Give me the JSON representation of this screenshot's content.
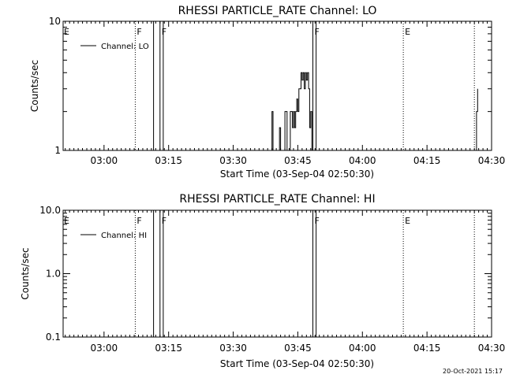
{
  "footer": {
    "timestamp": "20-Oct-2021 15:17"
  },
  "chart_data": [
    {
      "type": "line",
      "title": "RHESSI PARTICLE_RATE Channel: LO",
      "xlabel": "Start Time (03-Sep-04 02:50:30)",
      "ylabel": "Counts/sec",
      "y_scale": "log",
      "xlim": [
        "02:50:30",
        "04:30:00"
      ],
      "ylim": [
        1,
        10
      ],
      "x_ticks": [
        "03:00",
        "03:15",
        "03:30",
        "03:45",
        "04:00",
        "04:15",
        "04:30"
      ],
      "y_ticks": [
        {
          "value": 1,
          "label": "1"
        },
        {
          "value": 10,
          "label": "10"
        }
      ],
      "legend": {
        "position": "top-left",
        "entries": [
          "Channel: LO"
        ]
      },
      "series": [
        {
          "name": "Channel: LO",
          "segments": [
            [
              [
                "03:38:45",
                1
              ],
              [
                "03:39:00",
                2
              ],
              [
                "03:39:15",
                1
              ],
              [
                "03:40:30",
                1
              ],
              [
                "03:40:45",
                1.5
              ],
              [
                "03:41:00",
                1
              ],
              [
                "03:41:45",
                1
              ],
              [
                "03:42:00",
                2
              ],
              [
                "03:42:15",
                2
              ],
              [
                "03:42:30",
                1
              ],
              [
                "03:43:00",
                1
              ],
              [
                "03:43:15",
                2
              ],
              [
                "03:43:30",
                2
              ],
              [
                "03:43:45",
                1.5
              ],
              [
                "03:44:00",
                2
              ],
              [
                "03:44:15",
                1.5
              ],
              [
                "03:44:30",
                2
              ],
              [
                "03:44:45",
                2.5
              ],
              [
                "03:45:00",
                2
              ],
              [
                "03:45:15",
                3
              ],
              [
                "03:45:30",
                3
              ],
              [
                "03:45:45",
                4
              ],
              [
                "03:46:00",
                3.5
              ],
              [
                "03:46:15",
                4
              ],
              [
                "03:46:30",
                3
              ],
              [
                "03:46:45",
                4
              ],
              [
                "03:47:00",
                3.5
              ],
              [
                "03:47:15",
                4
              ],
              [
                "03:47:30",
                3
              ],
              [
                "03:47:45",
                1.5
              ],
              [
                "03:48:00",
                2
              ],
              [
                "03:48:15",
                1
              ]
            ],
            [
              [
                "04:26:15",
                1
              ],
              [
                "04:26:30",
                2
              ],
              [
                "04:26:45",
                3
              ]
            ]
          ]
        }
      ],
      "flag_lines": [
        {
          "x": "03:07:15",
          "style": "dotted",
          "label": "F"
        },
        {
          "x": "03:11:30",
          "style": "solid",
          "label": ""
        },
        {
          "x": "03:13:00",
          "style": "solid",
          "label": "F"
        },
        {
          "x": "03:13:45",
          "style": "solid",
          "label": ""
        },
        {
          "x": "03:48:30",
          "style": "solid",
          "label": "F"
        },
        {
          "x": "03:49:15",
          "style": "solid",
          "label": ""
        },
        {
          "x": "04:09:30",
          "style": "dotted",
          "label": "E"
        },
        {
          "x": "04:26:00",
          "style": "dotted",
          "label": ""
        }
      ],
      "left_label": "E"
    },
    {
      "type": "line",
      "title": "RHESSI PARTICLE_RATE Channel: HI",
      "xlabel": "Start Time (03-Sep-04 02:50:30)",
      "ylabel": "Counts/sec",
      "y_scale": "log",
      "xlim": [
        "02:50:30",
        "04:30:00"
      ],
      "ylim": [
        0.1,
        10
      ],
      "x_ticks": [
        "03:00",
        "03:15",
        "03:30",
        "03:45",
        "04:00",
        "04:15",
        "04:30"
      ],
      "y_ticks": [
        {
          "value": 0.1,
          "label": "0.1"
        },
        {
          "value": 1,
          "label": "1.0"
        },
        {
          "value": 10,
          "label": "10.0"
        }
      ],
      "legend": {
        "position": "top-left",
        "entries": [
          "Channel: HI"
        ]
      },
      "series": [
        {
          "name": "Channel: HI",
          "segments": []
        }
      ],
      "flag_lines": [
        {
          "x": "03:07:15",
          "style": "dotted",
          "label": "F"
        },
        {
          "x": "03:11:30",
          "style": "solid",
          "label": ""
        },
        {
          "x": "03:13:00",
          "style": "solid",
          "label": "F"
        },
        {
          "x": "03:13:45",
          "style": "solid",
          "label": ""
        },
        {
          "x": "03:48:30",
          "style": "solid",
          "label": "F"
        },
        {
          "x": "03:49:15",
          "style": "solid",
          "label": ""
        },
        {
          "x": "04:09:30",
          "style": "dotted",
          "label": "E"
        },
        {
          "x": "04:26:00",
          "style": "dotted",
          "label": ""
        }
      ],
      "left_label": "E"
    }
  ]
}
